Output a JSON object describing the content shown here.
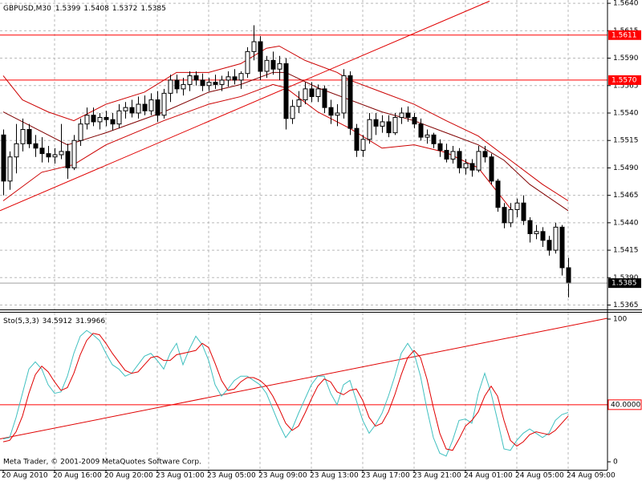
{
  "chart_data": [
    {
      "type": "candlestick",
      "symbol": "GBPUSD,M30",
      "categories": [
        "20 Aug 2010",
        null,
        null,
        null,
        null,
        null,
        null,
        null,
        "20 Aug 16:00",
        null,
        null,
        null,
        null,
        null,
        null,
        null,
        "20 Aug 20:00",
        null,
        null,
        null,
        null,
        null,
        null,
        null,
        "23 Aug 01:00",
        null,
        null,
        null,
        null,
        null,
        null,
        null,
        "23 Aug 05:00",
        null,
        null,
        null,
        null,
        null,
        null,
        null,
        "23 Aug 09:00",
        null,
        null,
        null,
        null,
        null,
        null,
        null,
        "23 Aug 13:00",
        null,
        null,
        null,
        null,
        null,
        null,
        null,
        "23 Aug 17:00",
        null,
        null,
        null,
        null,
        null,
        null,
        null,
        "23 Aug 21:00",
        null,
        null,
        null,
        null,
        null,
        null,
        null,
        "24 Aug 01:00",
        null,
        null,
        null,
        null,
        null,
        null,
        null,
        "24 Aug 05:00",
        null,
        null,
        null,
        null,
        null,
        null,
        null,
        "24 Aug 09:00"
      ],
      "ohlc": [
        [
          1.552,
          1.5525,
          1.5465,
          1.5478
        ],
        [
          1.5478,
          1.5505,
          1.547,
          1.55
        ],
        [
          1.55,
          1.553,
          1.5485,
          1.5512
        ],
        [
          1.5512,
          1.5535,
          1.5505,
          1.5525
        ],
        [
          1.5525,
          1.553,
          1.5508,
          1.5512
        ],
        [
          1.5512,
          1.552,
          1.55,
          1.5508
        ],
        [
          1.5508,
          1.5518,
          1.5495,
          1.5503
        ],
        [
          1.5503,
          1.551,
          1.5495,
          1.55
        ],
        [
          1.55,
          1.5508,
          1.5494,
          1.5502
        ],
        [
          1.5502,
          1.553,
          1.5498,
          1.5505
        ],
        [
          1.5505,
          1.5512,
          1.548,
          1.549
        ],
        [
          1.549,
          1.552,
          1.5488,
          1.5515
        ],
        [
          1.5515,
          1.5535,
          1.551,
          1.553
        ],
        [
          1.553,
          1.5545,
          1.5525,
          1.5538
        ],
        [
          1.5538,
          1.5545,
          1.5528,
          1.5532
        ],
        [
          1.5532,
          1.554,
          1.5525,
          1.5536
        ],
        [
          1.5536,
          1.5542,
          1.5528,
          1.5534
        ],
        [
          1.5534,
          1.554,
          1.5524,
          1.553
        ],
        [
          1.553,
          1.5548,
          1.5526,
          1.5542
        ],
        [
          1.5542,
          1.555,
          1.5535,
          1.5545
        ],
        [
          1.5545,
          1.5552,
          1.5536,
          1.554
        ],
        [
          1.554,
          1.5555,
          1.5535,
          1.5548
        ],
        [
          1.5548,
          1.5556,
          1.5538,
          1.5542
        ],
        [
          1.5542,
          1.5558,
          1.5538,
          1.5552
        ],
        [
          1.5552,
          1.556,
          1.5532,
          1.5538
        ],
        [
          1.5538,
          1.5562,
          1.5535,
          1.5558
        ],
        [
          1.5558,
          1.5575,
          1.555,
          1.557
        ],
        [
          1.557,
          1.5575,
          1.5558,
          1.5562
        ],
        [
          1.5562,
          1.5572,
          1.5556,
          1.5566
        ],
        [
          1.5566,
          1.5578,
          1.556,
          1.5574
        ],
        [
          1.5574,
          1.5578,
          1.5565,
          1.557
        ],
        [
          1.557,
          1.5576,
          1.556,
          1.5565
        ],
        [
          1.5565,
          1.5572,
          1.556,
          1.5568
        ],
        [
          1.5568,
          1.5575,
          1.5562,
          1.5566
        ],
        [
          1.5566,
          1.5574,
          1.556,
          1.557
        ],
        [
          1.557,
          1.5578,
          1.5564,
          1.5573
        ],
        [
          1.5573,
          1.558,
          1.5566,
          1.557
        ],
        [
          1.557,
          1.5578,
          1.5562,
          1.5576
        ],
        [
          1.5576,
          1.56,
          1.5572,
          1.5596
        ],
        [
          1.5596,
          1.562,
          1.5588,
          1.5605
        ],
        [
          1.5605,
          1.561,
          1.557,
          1.5578
        ],
        [
          1.5578,
          1.5592,
          1.5572,
          1.5588
        ],
        [
          1.5588,
          1.5596,
          1.5575,
          1.558
        ],
        [
          1.558,
          1.5592,
          1.557,
          1.5585
        ],
        [
          1.5585,
          1.559,
          1.5525,
          1.5535
        ],
        [
          1.5535,
          1.5552,
          1.553,
          1.5546
        ],
        [
          1.5546,
          1.556,
          1.554,
          1.5552
        ],
        [
          1.5552,
          1.5568,
          1.5548,
          1.5562
        ],
        [
          1.5562,
          1.5568,
          1.555,
          1.5555
        ],
        [
          1.5555,
          1.5566,
          1.555,
          1.5562
        ],
        [
          1.5562,
          1.5565,
          1.554,
          1.5545
        ],
        [
          1.5545,
          1.5552,
          1.553,
          1.5538
        ],
        [
          1.5538,
          1.5548,
          1.5528,
          1.554
        ],
        [
          1.554,
          1.558,
          1.5535,
          1.5574
        ],
        [
          1.5574,
          1.5578,
          1.552,
          1.5526
        ],
        [
          1.5526,
          1.553,
          1.55,
          1.5506
        ],
        [
          1.5506,
          1.552,
          1.55,
          1.5516
        ],
        [
          1.5516,
          1.554,
          1.5512,
          1.5534
        ],
        [
          1.5534,
          1.554,
          1.552,
          1.5528
        ],
        [
          1.5528,
          1.5538,
          1.5522,
          1.5532
        ],
        [
          1.5532,
          1.5538,
          1.5518,
          1.5522
        ],
        [
          1.5522,
          1.554,
          1.552,
          1.5536
        ],
        [
          1.5536,
          1.5545,
          1.553,
          1.554
        ],
        [
          1.554,
          1.5546,
          1.5532,
          1.5536
        ],
        [
          1.5536,
          1.554,
          1.5526,
          1.553
        ],
        [
          1.553,
          1.5535,
          1.5515,
          1.5518
        ],
        [
          1.5518,
          1.5525,
          1.5512,
          1.552
        ],
        [
          1.552,
          1.5522,
          1.5508,
          1.5512
        ],
        [
          1.5512,
          1.5516,
          1.55,
          1.5506
        ],
        [
          1.5506,
          1.5512,
          1.5495,
          1.5498
        ],
        [
          1.5498,
          1.551,
          1.5494,
          1.5505
        ],
        [
          1.5505,
          1.5508,
          1.5485,
          1.549
        ],
        [
          1.549,
          1.5498,
          1.5484,
          1.5494
        ],
        [
          1.5494,
          1.5498,
          1.5482,
          1.5488
        ],
        [
          1.5488,
          1.551,
          1.5486,
          1.5505
        ],
        [
          1.5505,
          1.551,
          1.5495,
          1.55
        ],
        [
          1.55,
          1.5503,
          1.5475,
          1.5478
        ],
        [
          1.5478,
          1.548,
          1.545,
          1.5454
        ],
        [
          1.5454,
          1.5458,
          1.5435,
          1.544
        ],
        [
          1.544,
          1.5458,
          1.5436,
          1.5452
        ],
        [
          1.5452,
          1.5462,
          1.5445,
          1.5458
        ],
        [
          1.5458,
          1.5465,
          1.5438,
          1.5442
        ],
        [
          1.5442,
          1.5445,
          1.5422,
          1.543
        ],
        [
          1.543,
          1.5438,
          1.5425,
          1.5432
        ],
        [
          1.5432,
          1.5436,
          1.5418,
          1.5424
        ],
        [
          1.5424,
          1.5428,
          1.541,
          1.5415
        ],
        [
          1.5415,
          1.544,
          1.5412,
          1.5436
        ],
        [
          1.5436,
          1.5438,
          1.5392,
          1.5399
        ],
        [
          1.5399,
          1.5408,
          1.5372,
          1.5385
        ]
      ],
      "series": [
        {
          "color": "#cc0000",
          "x": [
            0,
            3,
            7,
            11,
            16,
            22,
            27,
            32,
            37,
            41,
            43,
            47,
            52,
            54,
            59,
            64,
            69,
            74,
            79,
            84,
            88
          ],
          "values": [
            1.5574,
            1.5552,
            1.5541,
            1.5533,
            1.5548,
            1.5559,
            1.5577,
            1.5577,
            1.5585,
            1.5599,
            1.5601,
            1.5588,
            1.5577,
            1.557,
            1.5559,
            1.5548,
            1.5533,
            1.5519,
            1.5497,
            1.5475,
            1.546
          ]
        },
        {
          "color": "#800000",
          "x": [
            0,
            10,
            16,
            25,
            32,
            37,
            42,
            44,
            49,
            54,
            59,
            64,
            69,
            74,
            78,
            82,
            88
          ],
          "values": [
            1.5541,
            1.5511,
            1.5522,
            1.5541,
            1.5559,
            1.5566,
            1.5577,
            1.5577,
            1.5563,
            1.5552,
            1.5541,
            1.5533,
            1.5522,
            1.5511,
            1.5497,
            1.5475,
            1.5451
          ]
        },
        {
          "color": "#cc0000",
          "x": [
            0,
            6,
            11,
            16,
            25,
            32,
            37,
            42,
            44,
            49,
            54,
            59,
            64,
            69,
            74,
            79
          ],
          "values": [
            1.546,
            1.5486,
            1.5493,
            1.5511,
            1.5533,
            1.5548,
            1.5555,
            1.5566,
            1.5563,
            1.5541,
            1.5526,
            1.5508,
            1.5511,
            1.5504,
            1.549,
            1.5453
          ]
        }
      ],
      "trendlines": [
        {
          "color": "#e00000",
          "x": [
            -0.5,
            75.75
          ],
          "values": [
            1.5451,
            1.5642
          ]
        }
      ],
      "levels": [
        1.5611,
        {
          "value": 1.557,
          "label": "1.5570"
        }
      ],
      "level_color": "#ff0000",
      "ylim": [
        1.5361,
        1.5643
      ],
      "yticks": [
        {
          "value": 1.564,
          "label": "1.5640"
        },
        1.5615,
        {
          "value": 1.559,
          "label": "1.5590"
        },
        1.5565,
        {
          "value": 1.554,
          "label": "1.5540"
        },
        1.5515,
        {
          "value": 1.549,
          "label": "1.5490"
        },
        1.5465,
        {
          "value": 1.544,
          "label": "1.5440"
        },
        1.5415,
        {
          "value": 1.539,
          "label": "1.5390"
        },
        1.5365
      ],
      "grid": true
    },
    {
      "type": "line",
      "title": "Sto(5,3,3)",
      "series": [
        {
          "color": "#40c0c0",
          "values": [
            16,
            17,
            31,
            48,
            65,
            70,
            65,
            54,
            48,
            49,
            60,
            76,
            88,
            92,
            89,
            85,
            76,
            68,
            65,
            60,
            62,
            68,
            74,
            76,
            71,
            65,
            76,
            83,
            68,
            79,
            88,
            82,
            71,
            54,
            46,
            51,
            57,
            60,
            60,
            57,
            54,
            48,
            37,
            26,
            17,
            23,
            34,
            44,
            54,
            60,
            60,
            48,
            40,
            54,
            57,
            43,
            29,
            20,
            26,
            34,
            46,
            60,
            76,
            83,
            76,
            60,
            37,
            17,
            6,
            4,
            15,
            29,
            30,
            27,
            48,
            62,
            48,
            29,
            9,
            8,
            15,
            20,
            23,
            20,
            17,
            20,
            29,
            33,
            34.5912
          ]
        },
        {
          "color": "#e00000",
          "values": [
            14,
            15,
            21,
            32,
            48,
            61,
            67,
            63,
            56,
            50,
            52,
            62,
            75,
            85,
            90,
            89,
            83,
            76,
            70,
            64,
            62,
            63,
            68,
            73,
            74,
            71,
            71,
            75,
            76,
            77,
            78,
            83,
            80,
            69,
            57,
            50,
            51,
            56,
            59,
            59,
            57,
            53,
            46,
            37,
            27,
            22,
            25,
            34,
            44,
            53,
            58,
            56,
            49,
            47,
            50,
            51,
            43,
            31,
            25,
            27,
            35,
            47,
            61,
            73,
            78,
            73,
            58,
            38,
            20,
            9,
            8,
            16,
            25,
            29,
            35,
            46,
            53,
            46,
            29,
            15,
            11,
            14,
            19,
            21,
            20,
            19,
            22,
            27,
            31.9966
          ]
        }
      ],
      "trendlines": [
        {
          "color": "#e00000",
          "x": [
            -0.5,
            94.125
          ],
          "values": [
            16,
            100.6
          ]
        }
      ],
      "levels": [
        {
          "value": 40,
          "label": "40.0000"
        }
      ],
      "level_color": "#ff0000",
      "ylim": [
        -5.6,
        104.5
      ],
      "yticks": [
        0,
        100
      ],
      "grid": true,
      "footer": "Meta Trader, © 2001-2009 MetaQuotes Software Corp."
    }
  ]
}
